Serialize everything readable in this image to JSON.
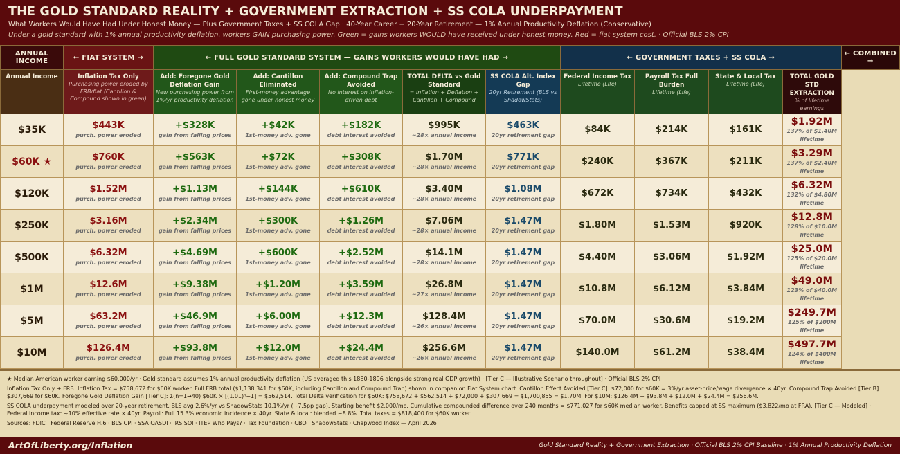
{
  "header": {
    "title": "THE GOLD STANDARD REALITY + GOVERNMENT EXTRACTION + SS COLA UNDERPAYMENT",
    "subtitle": "What Workers Would Have Had Under Honest Money — Plus Government Taxes + SS COLA Gap · 40-Year Career + 20-Year Retirement — 1% Annual Productivity Deflation (Conservative)",
    "note": "Under a gold standard with 1% annual productivity deflation, workers GAIN purchasing power. Green = gains workers WOULD have received under honest money. Red = fiat system cost. · Official BLS 2% CPI"
  },
  "groups": [
    "ANNUAL INCOME",
    "← FIAT SYSTEM →",
    "← FULL GOLD STANDARD SYSTEM — GAINS WORKERS WOULD HAVE HAD →",
    "← GOVERNMENT TAXES + SS COLA →",
    "← COMBINED →"
  ],
  "columns": [
    {
      "title": "Annual Income",
      "note": ""
    },
    {
      "title": "Inflation Tax Only",
      "note": "Purchasing power eroded by FRB/fiat (Cantillon & Compound shown in green)"
    },
    {
      "title": "Add: Foregone Gold Deflation Gain",
      "note": "New purchasing power from 1%/yr productivity deflation"
    },
    {
      "title": "Add: Cantillon Eliminated",
      "note": "First-money advantage gone under honest money"
    },
    {
      "title": "Add: Compound Trap Avoided",
      "note": "No interest on inflation-driven debt"
    },
    {
      "title": "TOTAL DELTA vs Gold Standard",
      "note": "= Inflation + Deflation + Cantillon + Compound"
    },
    {
      "title": "SS COLA Alt. Index Gap",
      "note": "20yr Retirement (BLS vs ShadowStats)"
    },
    {
      "title": "Federal Income Tax",
      "note": "Lifetime (Life)"
    },
    {
      "title": "Payroll Tax Full Burden",
      "note": "Lifetime (Life)"
    },
    {
      "title": "State & Local Tax",
      "note": "Lifetime (Life)"
    },
    {
      "title": "TOTAL GOLD STD EXTRACTION",
      "note": "% of lifetime earnings"
    }
  ],
  "cell_notes": {
    "inflation": "purch. power eroded",
    "deflation": "gain from falling prices",
    "cantillon": "1st-money adv. gone",
    "compound": "debt interest avoided",
    "cola": "20yr retirement gap"
  },
  "rows": [
    {
      "income": "$35K",
      "star": false,
      "inflation": "$443K",
      "deflation": "+$328K",
      "cantillon": "+$42K",
      "compound": "+$182K",
      "total": "$995K",
      "total_note": "~28× annual income",
      "cola": "$463K",
      "cola_note": "20yr retirement gap",
      "federal": "$84K",
      "payroll": "$214K",
      "state": "$161K",
      "combined": "$1.92M",
      "combined_note": "137% of $1.40M lifetime"
    },
    {
      "income": "$60K ★",
      "star": true,
      "inflation": "$760K",
      "deflation": "+$563K",
      "cantillon": "+$72K",
      "compound": "+$308K",
      "total": "$1.70M",
      "total_note": "~28× annual income",
      "cola": "$771K",
      "cola_note": "20yr retirement gap",
      "federal": "$240K",
      "payroll": "$367K",
      "state": "$211K",
      "combined": "$3.29M",
      "combined_note": "137% of $2.40M lifetime"
    },
    {
      "income": "$120K",
      "star": false,
      "inflation": "$1.52M",
      "deflation": "+$1.13M",
      "cantillon": "+$144K",
      "compound": "+$610K",
      "total": "$3.40M",
      "total_note": "~28× annual income",
      "cola": "$1.08M",
      "cola_note": "20yr retirement gap",
      "federal": "$672K",
      "payroll": "$734K",
      "state": "$432K",
      "combined": "$6.32M",
      "combined_note": "132% of $4.80M lifetime"
    },
    {
      "income": "$250K",
      "star": false,
      "inflation": "$3.16M",
      "deflation": "+$2.34M",
      "cantillon": "+$300K",
      "compound": "+$1.26M",
      "total": "$7.06M",
      "total_note": "~28× annual income",
      "cola": "$1.47M",
      "cola_note": "20yr retirement gap",
      "federal": "$1.80M",
      "payroll": "$1.53M",
      "state": "$920K",
      "combined": "$12.8M",
      "combined_note": "128% of $10.0M lifetime"
    },
    {
      "income": "$500K",
      "star": false,
      "inflation": "$6.32M",
      "deflation": "+$4.69M",
      "cantillon": "+$600K",
      "compound": "+$2.52M",
      "total": "$14.1M",
      "total_note": "~28× annual income",
      "cola": "$1.47M",
      "cola_note": "20yr retirement gap",
      "federal": "$4.40M",
      "payroll": "$3.06M",
      "state": "$1.92M",
      "combined": "$25.0M",
      "combined_note": "125% of $20.0M lifetime"
    },
    {
      "income": "$1M",
      "star": false,
      "inflation": "$12.6M",
      "deflation": "+$9.38M",
      "cantillon": "+$1.20M",
      "compound": "+$3.59M",
      "total": "$26.8M",
      "total_note": "~27× annual income",
      "cola": "$1.47M",
      "cola_note": "20yr retirement gap",
      "federal": "$10.8M",
      "payroll": "$6.12M",
      "state": "$3.84M",
      "combined": "$49.0M",
      "combined_note": "123% of $40.0M lifetime"
    },
    {
      "income": "$5M",
      "star": false,
      "inflation": "$63.2M",
      "deflation": "+$46.9M",
      "cantillon": "+$6.00M",
      "compound": "+$12.3M",
      "total": "$128.4M",
      "total_note": "~26× annual income",
      "cola": "$1.47M",
      "cola_note": "20yr retirement gap",
      "federal": "$70.0M",
      "payroll": "$30.6M",
      "state": "$19.2M",
      "combined": "$249.7M",
      "combined_note": "125% of $200M lifetime"
    },
    {
      "income": "$10M",
      "star": false,
      "inflation": "$126.4M",
      "deflation": "+$93.8M",
      "cantillon": "+$12.0M",
      "compound": "+$24.4M",
      "total": "$256.6M",
      "total_note": "~26× annual income",
      "cola": "$1.47M",
      "cola_note": "20yr retirement gap",
      "federal": "$140.0M",
      "payroll": "$61.2M",
      "state": "$38.4M",
      "combined": "$497.7M",
      "combined_note": "124% of $400M lifetime"
    }
  ],
  "notes": [
    "★ Median American worker earning $60,000/yr · Gold standard assumes 1% annual productivity deflation (US averaged this 1880-1896 alongside strong real GDP growth) · [Tier C — Illustrative Scenario throughout] · Official BLS 2% CPI",
    "Inflation Tax Only + FRB: Inflation Tax = $758,672 for $60K worker. Full FRB total ($1,138,341 for $60K, including Cantillon and Compound Trap) shown in companion Fiat System chart. Cantillon Effect Avoided [Tier C]: $72,000 for $60K = 3%/yr asset-price/wage divergence × 40yr. Compound Trap Avoided [Tier B]: $307,669 for $60K. Foregone Gold Deflation Gain [Tier C]: Σ(n=1→40) $60K × [(1.01)ⁿ−1] = $562,514. Total Delta verification for $60K: $758,672 + $562,514 + $72,000 + $307,669 = $1,700,855 = $1.70M. For $10M: $126.4M + $93.8M + $12.0M + $24.4M = $256.6M.",
    "SS COLA underpayment modeled over 20-year retirement. BLS avg 2.6%/yr vs ShadowStats 10.1%/yr (~7.5pp gap). Starting benefit $2,000/mo. Cumulative compounded difference over 240 months = $771,027 for $60K median worker. Benefits capped at SS maximum ($3,822/mo at FRA). [Tier C — Modeled] · Federal income tax: ~10% effective rate × 40yr. Payroll: Full 15.3% economic incidence × 40yr. State & local: blended ~8.8%. Total taxes = $818,400 for $60K worker.",
    "Sources: FDIC · Federal Reserve H.6 · BLS CPI · SSA OASDI · IRS SOI · ITEP Who Pays? · Tax Foundation · CBO · ShadowStats · Chapwood Index — April 2026"
  ],
  "footer": {
    "site": "ArtOfLiberty.org/Inflation",
    "tagline": "Gold Standard Reality + Government Extraction · Official BLS 2% CPI Baseline · 1% Annual Productivity Deflation"
  },
  "colors": {
    "title_bg": "#5a0a0c",
    "fiat": "#6a1414",
    "gold": "#1f4a12",
    "gov": "#12304a",
    "combined": "#2a0808",
    "red_text": "#8a1010",
    "green_text": "#1e6a10",
    "blue_text": "#1a4a6a"
  }
}
